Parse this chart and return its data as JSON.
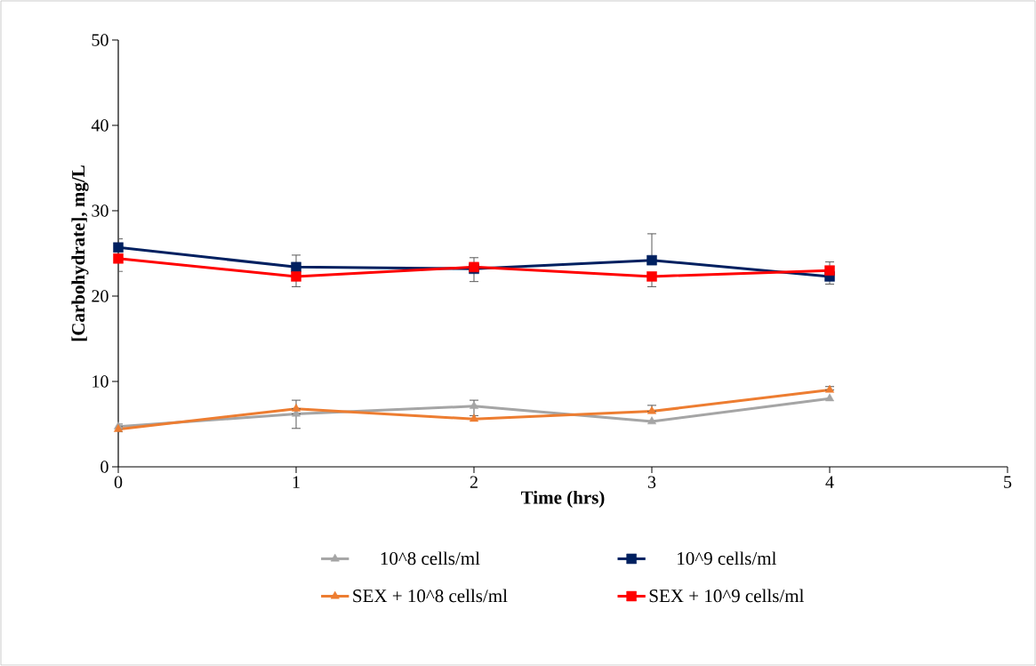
{
  "chart_data": {
    "type": "line",
    "xlabel": "Time (hrs)",
    "ylabel": "[Carbohydrate], mg/L",
    "x": [
      0,
      1,
      2,
      3,
      4
    ],
    "xlim": [
      0,
      5
    ],
    "xticks": [
      0,
      1,
      2,
      3,
      4,
      5
    ],
    "ylim": [
      0,
      50
    ],
    "yticks": [
      0,
      10,
      20,
      30,
      40,
      50
    ],
    "grid": false,
    "legend": "bottom",
    "line_style": "solid",
    "series": [
      {
        "name": "10^8 cells/ml",
        "color": "#a5a5a5",
        "marker": "triangle",
        "values": [
          4.7,
          6.2,
          7.1,
          5.3,
          8.0
        ],
        "errors": [
          [
            4.7,
            5.0
          ],
          [
            4.5,
            6.2
          ],
          [
            6.0,
            7.8
          ],
          null,
          null
        ]
      },
      {
        "name": "10^9 cells/ml",
        "color": "#002060",
        "marker": "square",
        "values": [
          25.7,
          23.4,
          23.2,
          24.2,
          22.3
        ],
        "errors": [
          [
            25.7,
            26.7
          ],
          [
            23.4,
            24.8
          ],
          [
            21.7,
            23.2
          ],
          [
            24.2,
            27.3
          ],
          [
            21.4,
            22.3
          ]
        ]
      },
      {
        "name": "SEX + 10^8 cells/ml",
        "color": "#ed7d31",
        "marker": "triangle",
        "values": [
          4.4,
          6.8,
          5.6,
          6.5,
          9.0
        ],
        "errors": [
          [
            4.1,
            4.4
          ],
          [
            6.8,
            7.8
          ],
          null,
          [
            6.5,
            7.2
          ],
          [
            9.0,
            9.4
          ]
        ]
      },
      {
        "name": "SEX + 10^9 cells/ml",
        "color": "#ff0000",
        "marker": "square",
        "values": [
          24.4,
          22.3,
          23.4,
          22.3,
          23.0
        ],
        "errors": [
          [
            22.9,
            24.4
          ],
          [
            21.1,
            22.3
          ],
          [
            23.4,
            24.5
          ],
          [
            21.1,
            22.3
          ],
          [
            23.0,
            24.0
          ]
        ]
      }
    ]
  }
}
